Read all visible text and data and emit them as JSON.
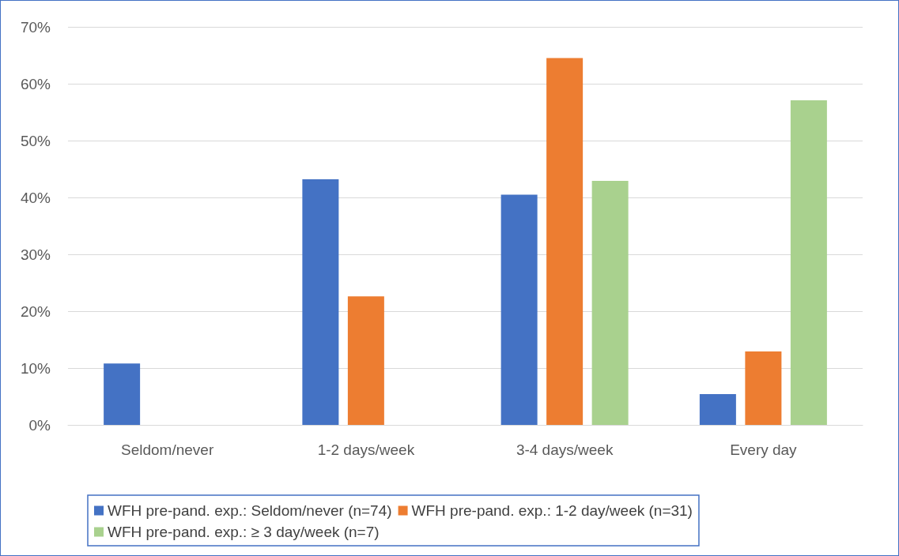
{
  "chart_data": {
    "type": "bar",
    "categories": [
      "Seldom/never",
      "1-2 days/week",
      "3-4 days/week",
      "Every day"
    ],
    "series": [
      {
        "name": "WFH pre-pand. exp.: Seldom/never (n=74)",
        "color": "#4472c4",
        "values": [
          10.8,
          43.2,
          40.5,
          5.4
        ]
      },
      {
        "name": "WFH pre-pand. exp.: 1-2 day/week (n=31)",
        "color": "#ed7d31",
        "values": [
          0,
          22.6,
          64.5,
          12.9
        ]
      },
      {
        "name": "WFH pre-pand. exp.: ≥ 3 day/week (n=7)",
        "color": "#a9d18e",
        "values": [
          0,
          0,
          42.9,
          57.1
        ]
      }
    ],
    "ylim": [
      0,
      70
    ],
    "yticks": [
      {
        "value": 0,
        "label": "0%"
      },
      {
        "value": 10,
        "label": "10%"
      },
      {
        "value": 20,
        "label": "20%"
      },
      {
        "value": 30,
        "label": "30%"
      },
      {
        "value": 40,
        "label": "40%"
      },
      {
        "value": 50,
        "label": "50%"
      },
      {
        "value": 60,
        "label": "60%"
      },
      {
        "value": 70,
        "label": "70%"
      }
    ],
    "grid": "y",
    "legend": "bottom"
  }
}
